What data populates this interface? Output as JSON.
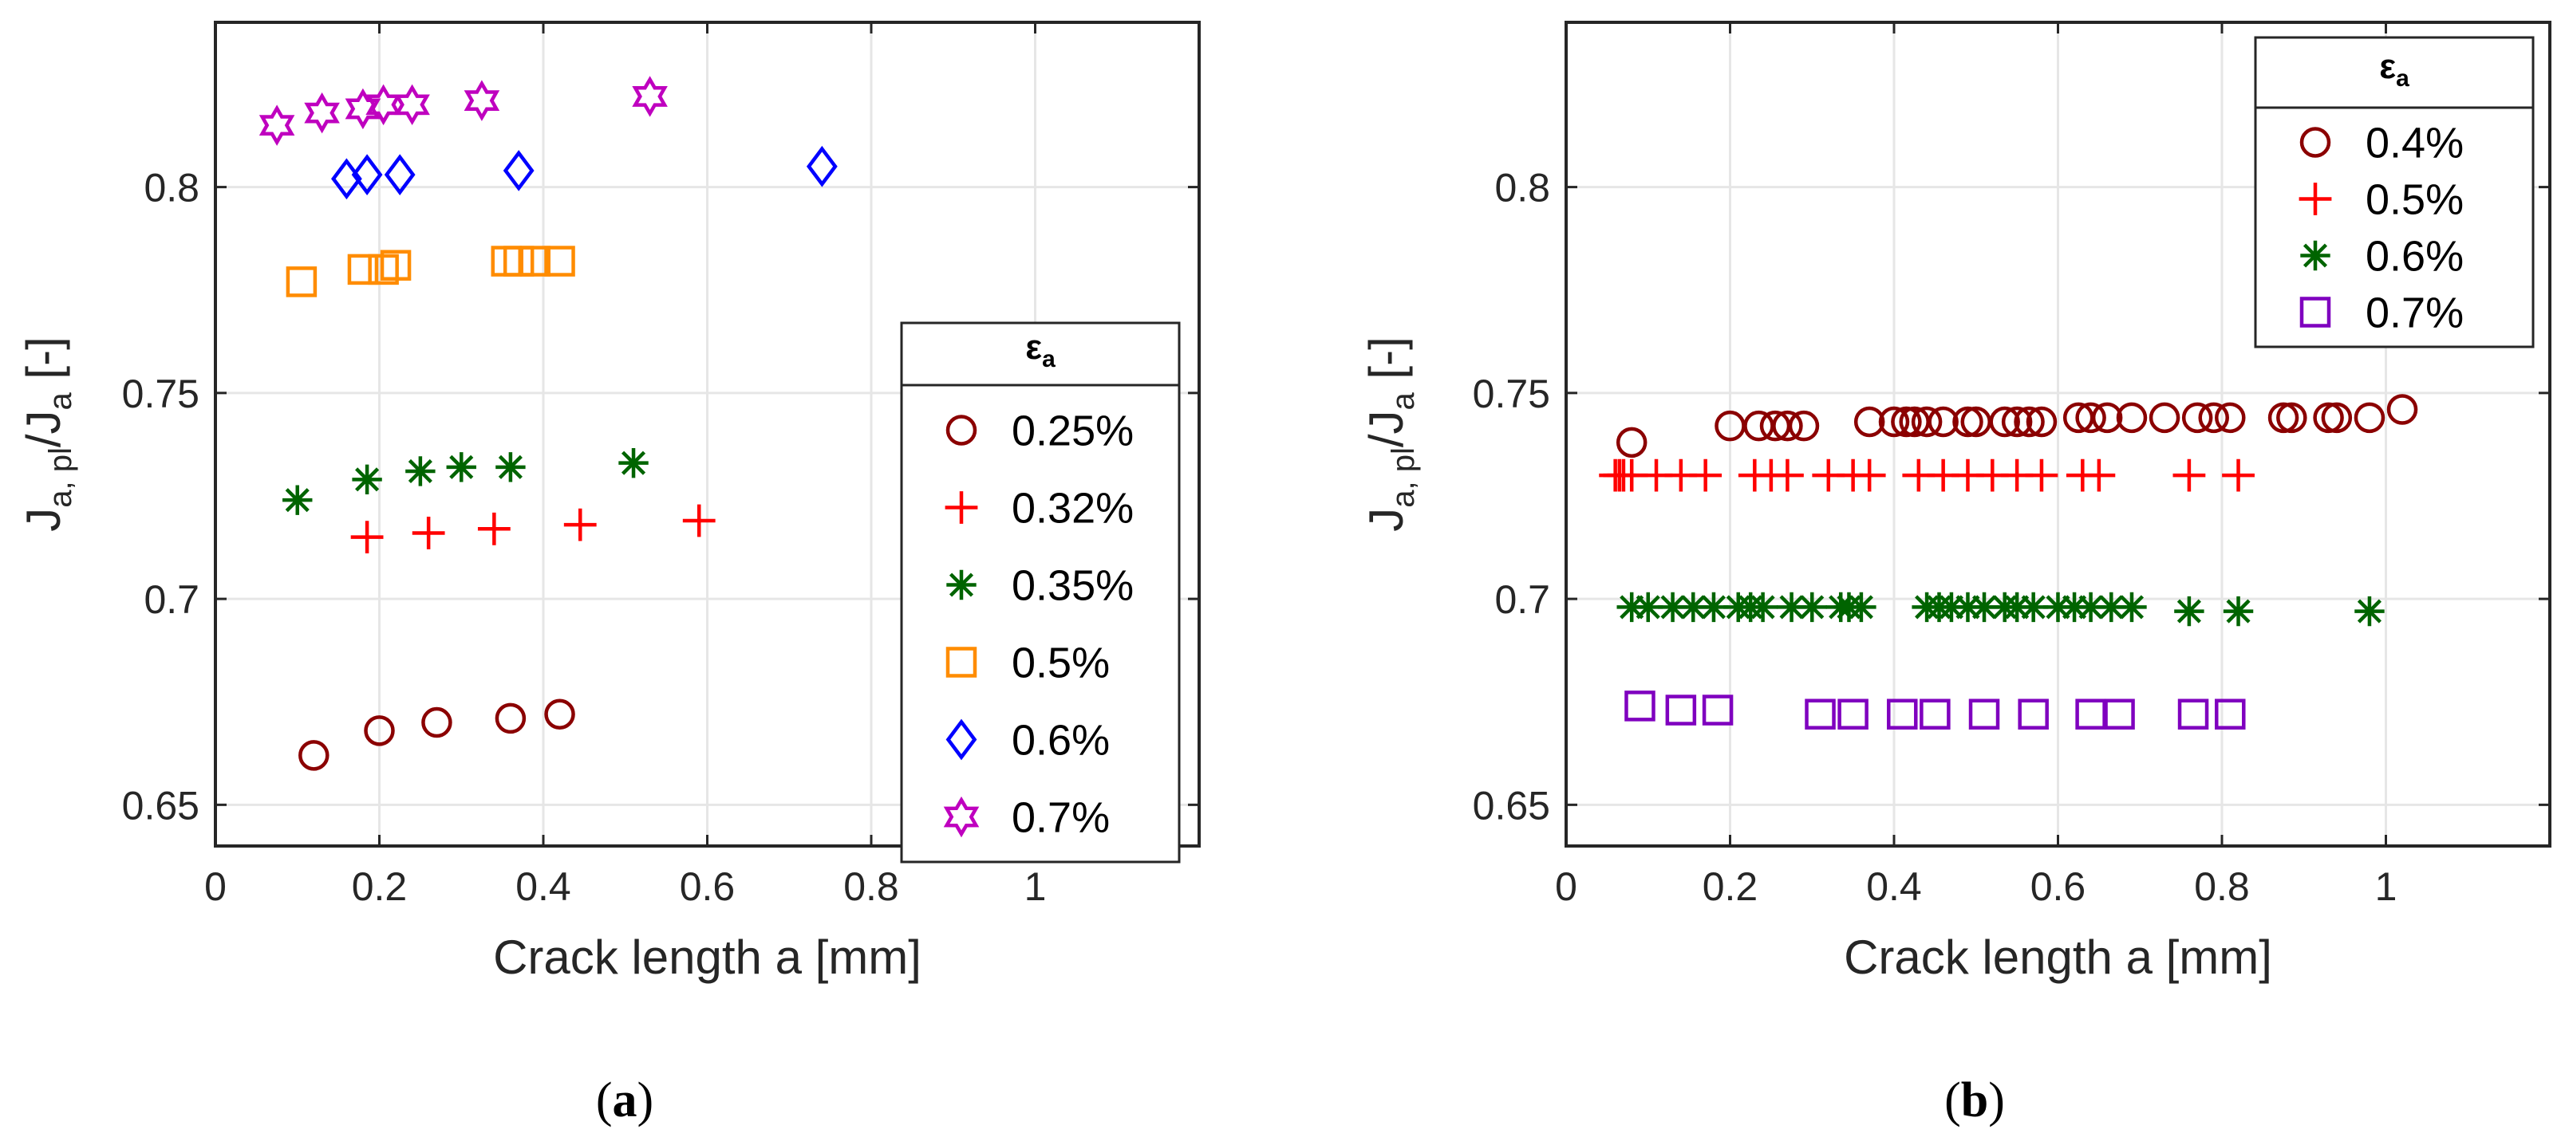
{
  "chart_data": [
    {
      "type": "scatter",
      "panel_label": "a",
      "xlabel": "Crack length a [mm]",
      "ylabel_main": "J",
      "ylabel_sub1": "a, pl",
      "ylabel_slash": "/J",
      "ylabel_sub2": "a",
      "ylabel_suffix": " [-]",
      "xlim": [
        0,
        1.2
      ],
      "ylim": [
        0.64,
        0.84
      ],
      "xticks": [
        0,
        0.2,
        0.4,
        0.6,
        0.8,
        1
      ],
      "xtick_labels": [
        "0",
        "0.2",
        "0.4",
        "0.6",
        "0.8",
        "1"
      ],
      "yticks": [
        0.65,
        0.7,
        0.75,
        0.8
      ],
      "ytick_labels": [
        "0.65",
        "0.7",
        "0.75",
        "0.8"
      ],
      "grid": true,
      "legend": {
        "title_main": "ε",
        "title_sub": "a",
        "placement": "right"
      },
      "series": [
        {
          "name": "0.25%",
          "marker": "circle",
          "color": "#8b0000",
          "x": [
            0.12,
            0.2,
            0.27,
            0.36,
            0.42
          ],
          "y": [
            0.662,
            0.668,
            0.67,
            0.671,
            0.672
          ]
        },
        {
          "name": "0.32%",
          "marker": "plus",
          "color": "#ff0000",
          "x": [
            0.185,
            0.26,
            0.34,
            0.445,
            0.59
          ],
          "y": [
            0.715,
            0.716,
            0.717,
            0.718,
            0.719
          ]
        },
        {
          "name": "0.35%",
          "marker": "asterisk",
          "color": "#006400",
          "x": [
            0.1,
            0.185,
            0.25,
            0.3,
            0.36,
            0.51
          ],
          "y": [
            0.724,
            0.729,
            0.731,
            0.732,
            0.732,
            0.733
          ]
        },
        {
          "name": "0.5%",
          "marker": "square",
          "color": "#ff8c00",
          "x": [
            0.105,
            0.18,
            0.205,
            0.22,
            0.355,
            0.37,
            0.39,
            0.42
          ],
          "y": [
            0.777,
            0.78,
            0.78,
            0.781,
            0.782,
            0.782,
            0.782,
            0.782
          ]
        },
        {
          "name": "0.6%",
          "marker": "diamond",
          "color": "#0000ff",
          "x": [
            0.16,
            0.185,
            0.225,
            0.37,
            0.74
          ],
          "y": [
            0.802,
            0.803,
            0.803,
            0.804,
            0.805
          ]
        },
        {
          "name": "0.7%",
          "marker": "hexagram",
          "color": "#bf00bf",
          "x": [
            0.075,
            0.13,
            0.18,
            0.205,
            0.24,
            0.325,
            0.53
          ],
          "y": [
            0.815,
            0.818,
            0.819,
            0.82,
            0.82,
            0.821,
            0.822
          ]
        }
      ]
    },
    {
      "type": "scatter",
      "panel_label": "b",
      "xlabel": "Crack length a [mm]",
      "ylabel_main": "J",
      "ylabel_sub1": "a, pl",
      "ylabel_slash": "/J",
      "ylabel_sub2": "a",
      "ylabel_suffix": " [-]",
      "xlim": [
        0,
        1.2
      ],
      "ylim": [
        0.64,
        0.84
      ],
      "xticks": [
        0,
        0.2,
        0.4,
        0.6,
        0.8,
        1
      ],
      "xtick_labels": [
        "0",
        "0.2",
        "0.4",
        "0.6",
        "0.8",
        "1"
      ],
      "yticks": [
        0.65,
        0.7,
        0.75,
        0.8
      ],
      "ytick_labels": [
        "0.65",
        "0.7",
        "0.75",
        "0.8"
      ],
      "grid": true,
      "legend": {
        "title_main": "ε",
        "title_sub": "a",
        "placement": "top-right"
      },
      "series": [
        {
          "name": "0.4%",
          "marker": "circle",
          "color": "#8b0000",
          "x": [
            0.08,
            0.2,
            0.235,
            0.255,
            0.27,
            0.29,
            0.37,
            0.4,
            0.415,
            0.425,
            0.44,
            0.46,
            0.49,
            0.5,
            0.535,
            0.55,
            0.565,
            0.58,
            0.625,
            0.64,
            0.66,
            0.69,
            0.73,
            0.77,
            0.79,
            0.81,
            0.875,
            0.885,
            0.93,
            0.94,
            0.98,
            1.02
          ],
          "y": [
            0.738,
            0.742,
            0.742,
            0.742,
            0.742,
            0.742,
            0.743,
            0.743,
            0.743,
            0.743,
            0.743,
            0.743,
            0.743,
            0.743,
            0.743,
            0.743,
            0.743,
            0.743,
            0.744,
            0.744,
            0.744,
            0.744,
            0.744,
            0.744,
            0.744,
            0.744,
            0.744,
            0.744,
            0.744,
            0.744,
            0.744,
            0.746
          ]
        },
        {
          "name": "0.5%",
          "marker": "plus",
          "color": "#ff0000",
          "x": [
            0.06,
            0.065,
            0.07,
            0.08,
            0.11,
            0.14,
            0.17,
            0.23,
            0.25,
            0.27,
            0.32,
            0.35,
            0.37,
            0.43,
            0.46,
            0.49,
            0.52,
            0.55,
            0.58,
            0.63,
            0.65,
            0.76,
            0.82
          ],
          "y": [
            0.73,
            0.73,
            0.73,
            0.73,
            0.73,
            0.73,
            0.73,
            0.73,
            0.73,
            0.73,
            0.73,
            0.73,
            0.73,
            0.73,
            0.73,
            0.73,
            0.73,
            0.73,
            0.73,
            0.73,
            0.73,
            0.73,
            0.73
          ]
        },
        {
          "name": "0.6%",
          "marker": "asterisk",
          "color": "#006400",
          "x": [
            0.08,
            0.1,
            0.13,
            0.155,
            0.18,
            0.21,
            0.225,
            0.24,
            0.275,
            0.3,
            0.335,
            0.345,
            0.36,
            0.44,
            0.455,
            0.47,
            0.49,
            0.51,
            0.535,
            0.55,
            0.57,
            0.6,
            0.62,
            0.64,
            0.665,
            0.69,
            0.76,
            0.82,
            0.98
          ],
          "y": [
            0.698,
            0.698,
            0.698,
            0.698,
            0.698,
            0.698,
            0.698,
            0.698,
            0.698,
            0.698,
            0.698,
            0.698,
            0.698,
            0.698,
            0.698,
            0.698,
            0.698,
            0.698,
            0.698,
            0.698,
            0.698,
            0.698,
            0.698,
            0.698,
            0.698,
            0.698,
            0.697,
            0.697,
            0.697
          ]
        },
        {
          "name": "0.7%",
          "marker": "square",
          "color": "#7f00bf",
          "x": [
            0.09,
            0.14,
            0.185,
            0.31,
            0.35,
            0.41,
            0.45,
            0.51,
            0.57,
            0.64,
            0.675,
            0.765,
            0.81
          ],
          "y": [
            0.674,
            0.673,
            0.673,
            0.672,
            0.672,
            0.672,
            0.672,
            0.672,
            0.672,
            0.672,
            0.672,
            0.672,
            0.672
          ]
        }
      ]
    }
  ]
}
